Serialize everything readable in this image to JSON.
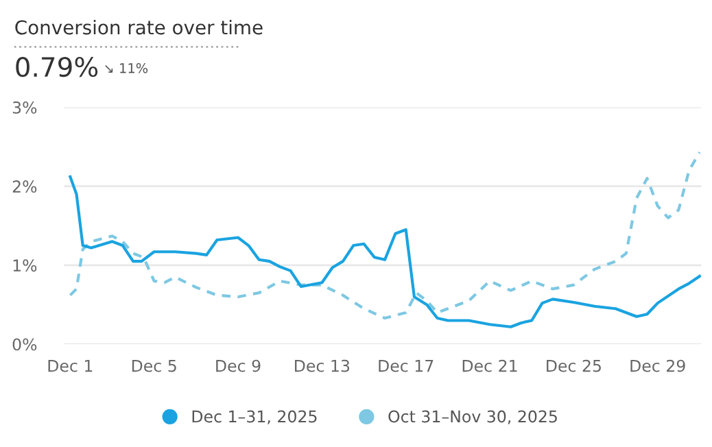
{
  "chart_data": {
    "type": "line",
    "title": "Conversion rate over time",
    "annotations": [
      "0.79%",
      "↘ 11%"
    ],
    "xlim": [
      "2025-11-30T17:00",
      "2025-12-31T02:00"
    ],
    "xticks": [
      {
        "value": "2025-12-01",
        "label": "Dec 1"
      },
      {
        "value": "2025-12-05",
        "label": "Dec 5"
      },
      {
        "value": "2025-12-09",
        "label": "Dec 9"
      },
      {
        "value": "2025-12-13",
        "label": "Dec 13"
      },
      {
        "value": "2025-12-17",
        "label": "Dec 17"
      },
      {
        "value": "2025-12-21",
        "label": "Dec 21"
      },
      {
        "value": "2025-12-25",
        "label": "Dec 25"
      },
      {
        "value": "2025-12-29",
        "label": "Dec 29"
      }
    ],
    "ylim": [
      0,
      3
    ],
    "yticks": [
      {
        "value": 0,
        "label": "0%"
      },
      {
        "value": 1,
        "label": "1%"
      },
      {
        "value": 2,
        "label": "2%"
      },
      {
        "value": 3,
        "label": "3%"
      }
    ],
    "grid": "y",
    "legend": "bottom",
    "marker": "none",
    "series": [
      {
        "name": "Dec 1–31, 2025",
        "color": "#1aa3e0",
        "line_style": "solid",
        "x": [
          "2025-12-01",
          "2025-12-01T07:12",
          "2025-12-01T14:24",
          "2025-12-02",
          "2025-12-03",
          "2025-12-03T12:00",
          "2025-12-04",
          "2025-12-04T09:36",
          "2025-12-05",
          "2025-12-06",
          "2025-12-07",
          "2025-12-07T12:00",
          "2025-12-08",
          "2025-12-09",
          "2025-12-09T12:00",
          "2025-12-10",
          "2025-12-10T12:00",
          "2025-12-11",
          "2025-12-11T12:00",
          "2025-12-12",
          "2025-12-13",
          "2025-12-13T12:00",
          "2025-12-14",
          "2025-12-14T12:00",
          "2025-12-15",
          "2025-12-15T12:00",
          "2025-12-16",
          "2025-12-16T12:00",
          "2025-12-17",
          "2025-12-17T09:36",
          "2025-12-18",
          "2025-12-18T12:00",
          "2025-12-19",
          "2025-12-20",
          "2025-12-21",
          "2025-12-22",
          "2025-12-22T12:00",
          "2025-12-23",
          "2025-12-23T12:00",
          "2025-12-24",
          "2025-12-25",
          "2025-12-26",
          "2025-12-27",
          "2025-12-28",
          "2025-12-28T12:00",
          "2025-12-29",
          "2025-12-30",
          "2025-12-30T12:00",
          "2025-12-31"
        ],
        "values": [
          2.12,
          1.9,
          1.25,
          1.22,
          1.3,
          1.25,
          1.05,
          1.05,
          1.17,
          1.17,
          1.15,
          1.13,
          1.32,
          1.35,
          1.25,
          1.07,
          1.05,
          0.98,
          0.93,
          0.73,
          0.78,
          0.97,
          1.05,
          1.25,
          1.27,
          1.1,
          1.07,
          1.4,
          1.45,
          0.6,
          0.5,
          0.33,
          0.3,
          0.3,
          0.25,
          0.22,
          0.27,
          0.3,
          0.52,
          0.57,
          0.53,
          0.48,
          0.45,
          0.35,
          0.38,
          0.52,
          0.7,
          0.77,
          0.86
        ]
      },
      {
        "name": "Oct 31–Nov 30, 2025",
        "color": "#7ec8e3",
        "line_style": "dashed",
        "x": [
          "2025-12-01",
          "2025-12-01T07:12",
          "2025-12-01T14:24",
          "2025-12-02",
          "2025-12-03",
          "2025-12-03T12:00",
          "2025-12-04",
          "2025-12-04T12:00",
          "2025-12-05",
          "2025-12-05T12:00",
          "2025-12-06",
          "2025-12-07",
          "2025-12-08",
          "2025-12-09",
          "2025-12-10",
          "2025-12-11",
          "2025-12-12",
          "2025-12-13",
          "2025-12-14",
          "2025-12-15",
          "2025-12-16",
          "2025-12-17",
          "2025-12-17T12:00",
          "2025-12-18",
          "2025-12-18T12:00",
          "2025-12-19",
          "2025-12-20",
          "2025-12-21",
          "2025-12-22",
          "2025-12-23",
          "2025-12-24",
          "2025-12-25",
          "2025-12-26",
          "2025-12-27",
          "2025-12-27T12:00",
          "2025-12-28",
          "2025-12-28T12:00",
          "2025-12-29",
          "2025-12-29T12:00",
          "2025-12-30",
          "2025-12-30T12:00",
          "2025-12-31"
        ],
        "values": [
          0.62,
          0.7,
          1.2,
          1.3,
          1.37,
          1.3,
          1.15,
          1.1,
          0.8,
          0.78,
          0.85,
          0.72,
          0.62,
          0.6,
          0.65,
          0.8,
          0.75,
          0.75,
          0.62,
          0.45,
          0.33,
          0.4,
          0.65,
          0.55,
          0.4,
          0.45,
          0.55,
          0.8,
          0.68,
          0.8,
          0.7,
          0.75,
          0.95,
          1.05,
          1.15,
          1.85,
          2.1,
          1.75,
          1.6,
          1.7,
          2.2,
          2.43
        ]
      }
    ]
  }
}
